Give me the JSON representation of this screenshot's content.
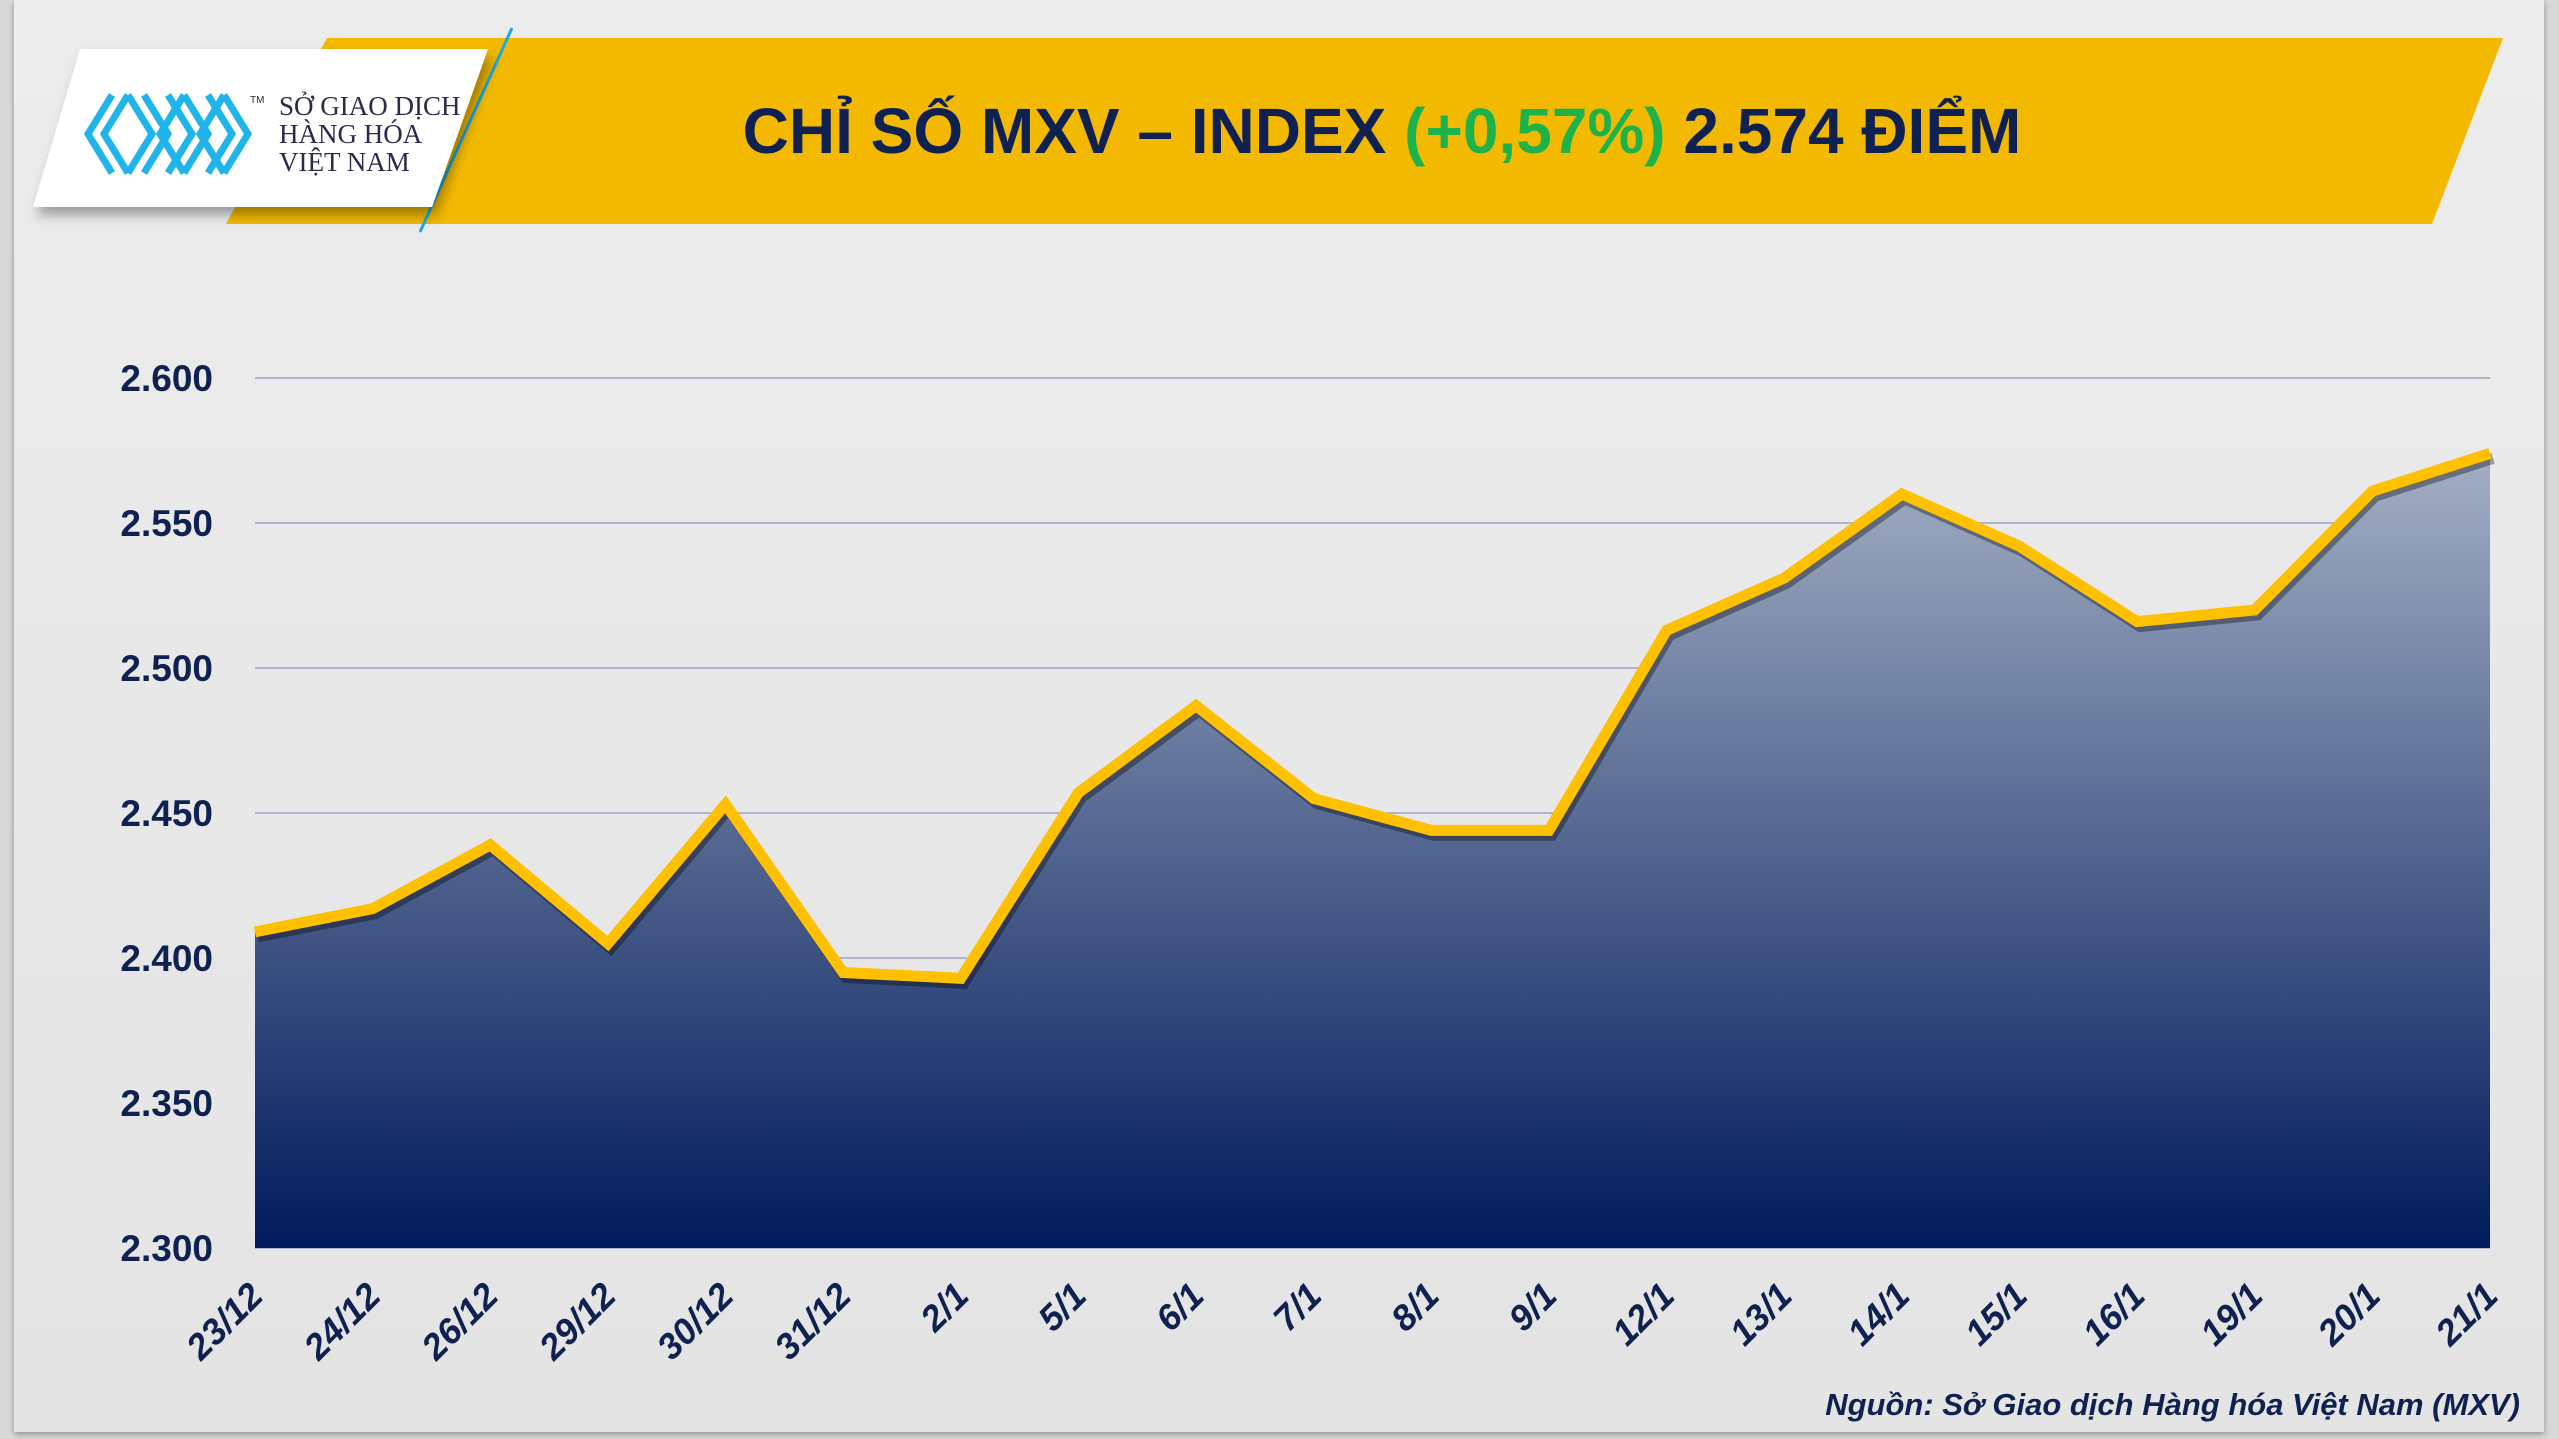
{
  "header": {
    "title_prefix": "CHỈ SỐ MXV – INDEX",
    "change": "(+0,57%)",
    "value_text": "2.574 ĐIỂM",
    "change_color": "#1db34a",
    "banner_color": "#f2b900"
  },
  "logo": {
    "line1": "SỞ GIAO DỊCH",
    "line2": "HÀNG HÓA",
    "line3": "VIỆT NAM",
    "mark": "MXV",
    "tm": "TM"
  },
  "source": "Nguồn: Sở Giao dịch Hàng hóa Việt Nam (MXV)",
  "chart_data": {
    "type": "area",
    "title": "CHỈ SỐ MXV – INDEX (+0,57%) 2.574 ĐIỂM",
    "xlabel": "",
    "ylabel": "",
    "categories": [
      "23/12",
      "24/12",
      "26/12",
      "29/12",
      "30/12",
      "31/12",
      "2/1",
      "5/1",
      "6/1",
      "7/1",
      "8/1",
      "9/1",
      "12/1",
      "13/1",
      "14/1",
      "15/1",
      "16/1",
      "19/1",
      "20/1",
      "21/1"
    ],
    "values": [
      2409,
      2417,
      2439,
      2405,
      2453,
      2395,
      2393,
      2457,
      2487,
      2455,
      2444,
      2444,
      2513,
      2531,
      2560,
      2542,
      2516,
      2520,
      2561,
      2574
    ],
    "ylim": [
      2300,
      2600
    ],
    "yticks": [
      2300,
      2350,
      2400,
      2450,
      2500,
      2550,
      2600
    ],
    "ytick_labels": [
      "2.300",
      "2.350",
      "2.400",
      "2.450",
      "2.500",
      "2.550",
      "2.600"
    ],
    "grid": true,
    "line_color": "#ffc000",
    "fill_top_color": "#a3afc4",
    "fill_bottom_color": "#001a5c"
  }
}
